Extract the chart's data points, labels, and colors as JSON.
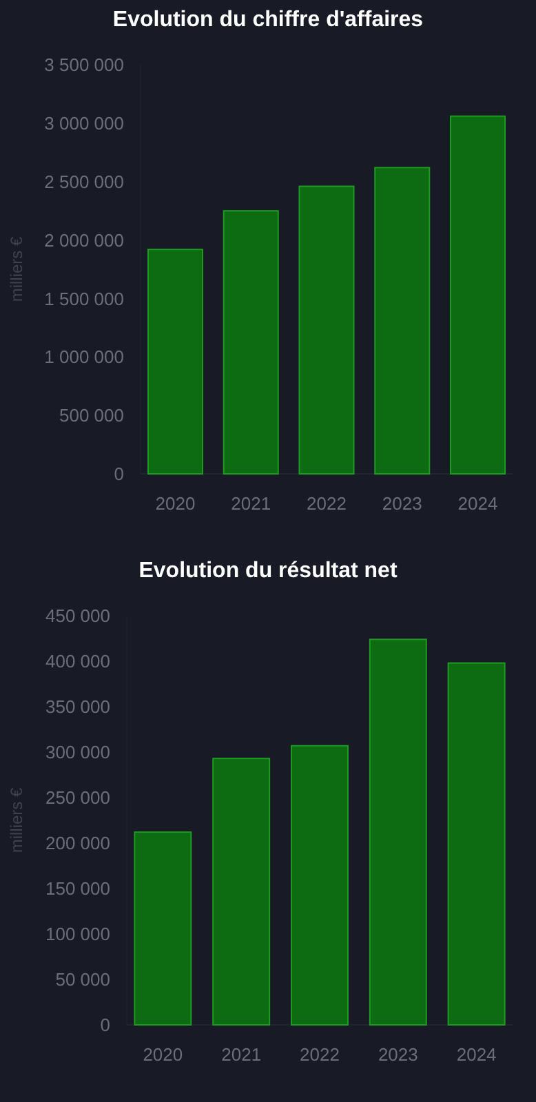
{
  "chart_data": [
    {
      "type": "bar",
      "title": "Evolution du chiffre d'affaires",
      "ylabel": "milliers €",
      "categories": [
        "2020",
        "2021",
        "2022",
        "2023",
        "2024"
      ],
      "values": [
        1920000,
        2250000,
        2460000,
        2620000,
        3060000
      ],
      "color": "#0d6b12",
      "ylim": [
        0,
        3500000
      ],
      "yticks": [
        0,
        {
          "value": 500000,
          "label": "500 000"
        },
        {
          "value": 1000000,
          "label": "1 000 000"
        },
        {
          "value": 1500000,
          "label": "1 500 000"
        },
        {
          "value": 2000000,
          "label": "2 000 000"
        },
        {
          "value": 2500000,
          "label": "2 500 000"
        },
        {
          "value": 3000000,
          "label": "3 000 000"
        },
        {
          "value": 3500000,
          "label": "3 500 000"
        }
      ]
    },
    {
      "type": "bar",
      "title": "Evolution du résultat net",
      "ylabel": "milliers €",
      "categories": [
        "2020",
        "2021",
        "2022",
        "2023",
        "2024"
      ],
      "values": [
        212000,
        293000,
        307000,
        424000,
        398000
      ],
      "color": "#0d6b12",
      "ylim": [
        0,
        450000
      ],
      "yticks": [
        0,
        {
          "value": 50000,
          "label": "50 000"
        },
        {
          "value": 100000,
          "label": "100 000"
        },
        {
          "value": 150000,
          "label": "150 000"
        },
        {
          "value": 200000,
          "label": "200 000"
        },
        {
          "value": 250000,
          "label": "250 000"
        },
        {
          "value": 300000,
          "label": "300 000"
        },
        {
          "value": 350000,
          "label": "350 000"
        },
        {
          "value": 400000,
          "label": "400 000"
        },
        {
          "value": 450000,
          "label": "450 000"
        }
      ]
    }
  ]
}
